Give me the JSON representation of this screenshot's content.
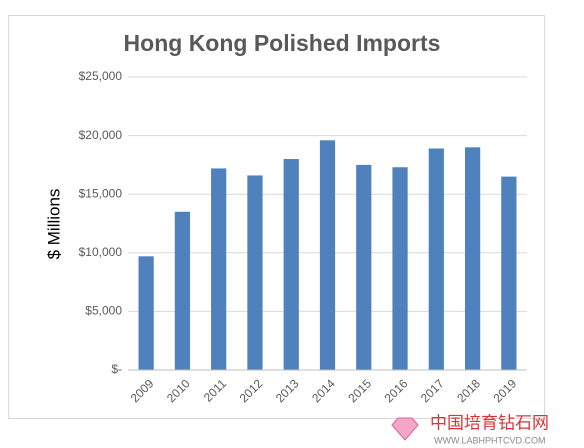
{
  "chart_data": {
    "type": "bar",
    "title": "Hong Kong Polished Imports",
    "y_label": "$ Millions",
    "categories": [
      "2009",
      "2010",
      "2011",
      "2012",
      "2013",
      "2014",
      "2015",
      "2016",
      "2017",
      "2018",
      "2019"
    ],
    "values": [
      9700,
      13500,
      17200,
      16600,
      18000,
      19600,
      17500,
      17300,
      18900,
      19000,
      16500
    ],
    "color": "#4f81bd",
    "ylim": [
      0,
      25000
    ],
    "yticks": [
      {
        "value": 0,
        "label": "$-"
      },
      {
        "value": 5000,
        "label": "$5,000"
      },
      {
        "value": 10000,
        "label": "$10,000"
      },
      {
        "value": 15000,
        "label": "$15,000"
      },
      {
        "value": 20000,
        "label": "$20,000"
      },
      {
        "value": 25000,
        "label": "$25,000"
      }
    ],
    "grid": true
  },
  "watermark": {
    "name": "中国培育钻石网",
    "url": "WWW.LABHPHTCVD.COM"
  }
}
